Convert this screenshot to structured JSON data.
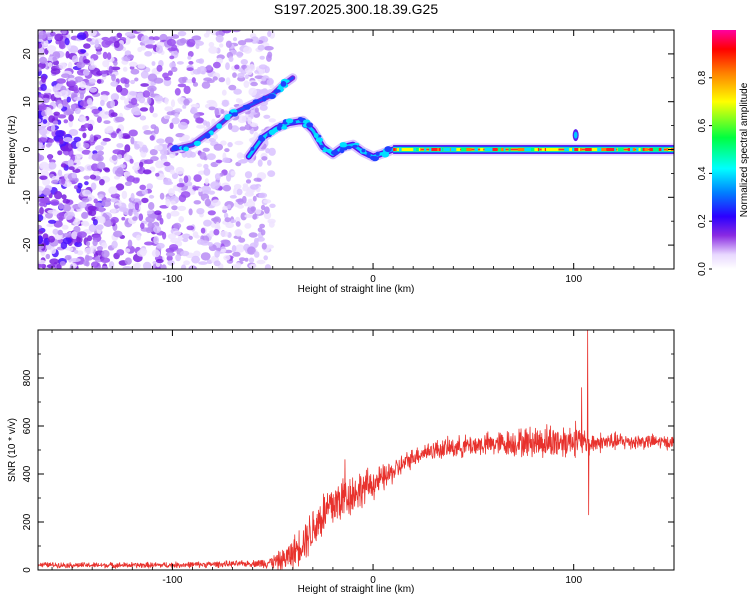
{
  "title": "S197.2025.300.18.39.G25",
  "chart_data": [
    {
      "type": "heatmap",
      "panel": "spectrogram",
      "title": "S197.2025.300.18.39.G25",
      "xlabel": "Height of straight line (km)",
      "ylabel": "Frequency (Hz)",
      "xlim": [
        -167,
        150
      ],
      "ylim": [
        -25,
        25
      ],
      "xticks": [
        -100,
        0,
        100
      ],
      "yticks": [
        -20,
        -10,
        0,
        10,
        20
      ],
      "xtick_labels": [
        "-100",
        "0",
        "100"
      ],
      "ytick_labels": [
        "-20",
        "-10",
        "0",
        "10",
        "20"
      ],
      "colorbar": {
        "label": "Normalized spectral amplitude",
        "range": [
          0,
          1
        ],
        "ticks": [
          0.0,
          0.2,
          0.4,
          0.6,
          0.8
        ],
        "tick_labels": [
          "0.0",
          "0.2",
          "0.4",
          "0.6",
          "0.8"
        ]
      },
      "noise_region_x": [
        -167,
        -55
      ],
      "ridge": [
        {
          "x": -100,
          "f": 0.0
        },
        {
          "x": -90,
          "f": 1.0
        },
        {
          "x": -80,
          "f": 4.0
        },
        {
          "x": -70,
          "f": 7.5
        },
        {
          "x": -60,
          "f": 9.5
        },
        {
          "x": -50,
          "f": 11.5
        },
        {
          "x": -45,
          "f": 13.5
        },
        {
          "x": -40,
          "f": 15.0
        }
      ],
      "ridge2": [
        {
          "x": -62,
          "f": -1.5
        },
        {
          "x": -55,
          "f": 2.5
        },
        {
          "x": -48,
          "f": 4.5
        },
        {
          "x": -42,
          "f": 5.5
        },
        {
          "x": -35,
          "f": 6.0
        },
        {
          "x": -30,
          "f": 4.0
        },
        {
          "x": -25,
          "f": 0.5
        },
        {
          "x": -20,
          "f": -1.0
        },
        {
          "x": -15,
          "f": 0.5
        },
        {
          "x": -10,
          "f": 1.0
        },
        {
          "x": -5,
          "f": -0.5
        },
        {
          "x": 0,
          "f": -1.5
        },
        {
          "x": 5,
          "f": -0.8
        },
        {
          "x": 10,
          "f": 0.0
        },
        {
          "x": 150,
          "f": 0.0
        }
      ],
      "carrier": {
        "x": [
          10,
          150
        ],
        "f": 0.0
      }
    },
    {
      "type": "line",
      "panel": "snr",
      "xlabel": "Height of straight line (km)",
      "ylabel": "SNR (10 * v/v)",
      "xlim": [
        -167,
        150
      ],
      "ylim": [
        0,
        1000
      ],
      "xticks": [
        -100,
        0,
        100
      ],
      "yticks": [
        0,
        200,
        400,
        600,
        800
      ],
      "xtick_labels": [
        "-100",
        "0",
        "100"
      ],
      "ytick_labels": [
        "0",
        "200",
        "400",
        "600",
        "800"
      ],
      "color": "#e8322d",
      "series": [
        {
          "name": "SNR",
          "points": [
            [
              -167,
              22
            ],
            [
              -150,
              20
            ],
            [
              -130,
              20
            ],
            [
              -110,
              20
            ],
            [
              -90,
              22
            ],
            [
              -70,
              25
            ],
            [
              -55,
              28
            ],
            [
              -45,
              40
            ],
            [
              -40,
              70
            ],
            [
              -35,
              120
            ],
            [
              -30,
              170
            ],
            [
              -25,
              230
            ],
            [
              -20,
              270
            ],
            [
              -15,
              300
            ],
            [
              -10,
              320
            ],
            [
              -5,
              340
            ],
            [
              0,
              360
            ],
            [
              5,
              380
            ],
            [
              10,
              410
            ],
            [
              15,
              440
            ],
            [
              20,
              470
            ],
            [
              25,
              490
            ],
            [
              30,
              500
            ],
            [
              40,
              510
            ],
            [
              50,
              520
            ],
            [
              60,
              525
            ],
            [
              70,
              530
            ],
            [
              80,
              535
            ],
            [
              90,
              535
            ],
            [
              100,
              540
            ],
            [
              105,
              530
            ],
            [
              108,
              520
            ],
            [
              110,
              530
            ],
            [
              120,
              535
            ],
            [
              130,
              535
            ],
            [
              140,
              535
            ],
            [
              150,
              530
            ]
          ],
          "noise_amplitude": [
            [
              -167,
              10
            ],
            [
              -60,
              12
            ],
            [
              -50,
              25
            ],
            [
              -40,
              60
            ],
            [
              -30,
              90
            ],
            [
              -20,
              100
            ],
            [
              -10,
              80
            ],
            [
              0,
              60
            ],
            [
              10,
              45
            ],
            [
              20,
              35
            ],
            [
              40,
              40
            ],
            [
              60,
              45
            ],
            [
              80,
              60
            ],
            [
              90,
              70
            ],
            [
              100,
              60
            ],
            [
              110,
              40
            ],
            [
              130,
              30
            ],
            [
              150,
              25
            ]
          ],
          "spikes": [
            [
              -14,
              460
            ],
            [
              101,
              620
            ],
            [
              104,
              760
            ],
            [
              107,
              1000
            ],
            [
              107.5,
              230
            ]
          ]
        }
      ]
    }
  ]
}
